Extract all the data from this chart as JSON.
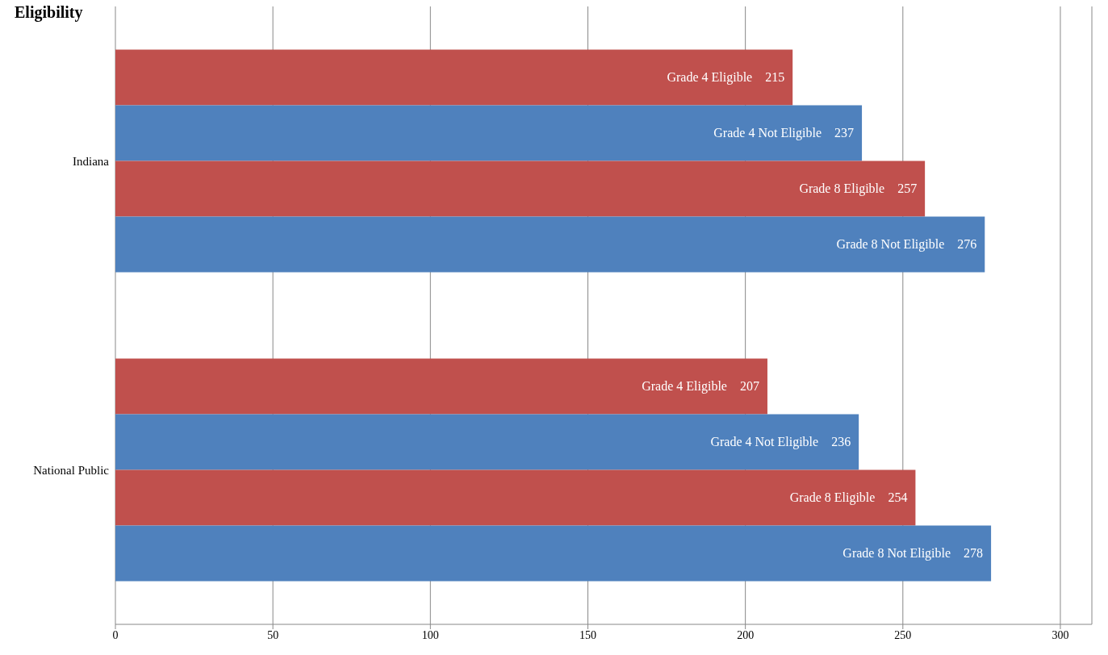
{
  "chart_data": {
    "type": "bar",
    "orientation": "horizontal",
    "title": "Eligibility",
    "categories": [
      "Indiana",
      "National Public"
    ],
    "series": [
      {
        "name": "Grade 4 Eligible",
        "color": "#c0504d",
        "values": [
          215,
          207
        ]
      },
      {
        "name": "Grade 4 Not Eligible",
        "color": "#4f81bd",
        "values": [
          237,
          236
        ]
      },
      {
        "name": "Grade 8 Eligible",
        "color": "#c0504d",
        "values": [
          257,
          254
        ]
      },
      {
        "name": "Grade 8 Not Eligible",
        "color": "#4f81bd",
        "values": [
          276,
          278
        ]
      }
    ],
    "xlim": [
      0,
      310
    ],
    "xticks": [
      0,
      50,
      100,
      150,
      200,
      250,
      300
    ],
    "grid": "x",
    "legend": false,
    "data_labels": true
  }
}
